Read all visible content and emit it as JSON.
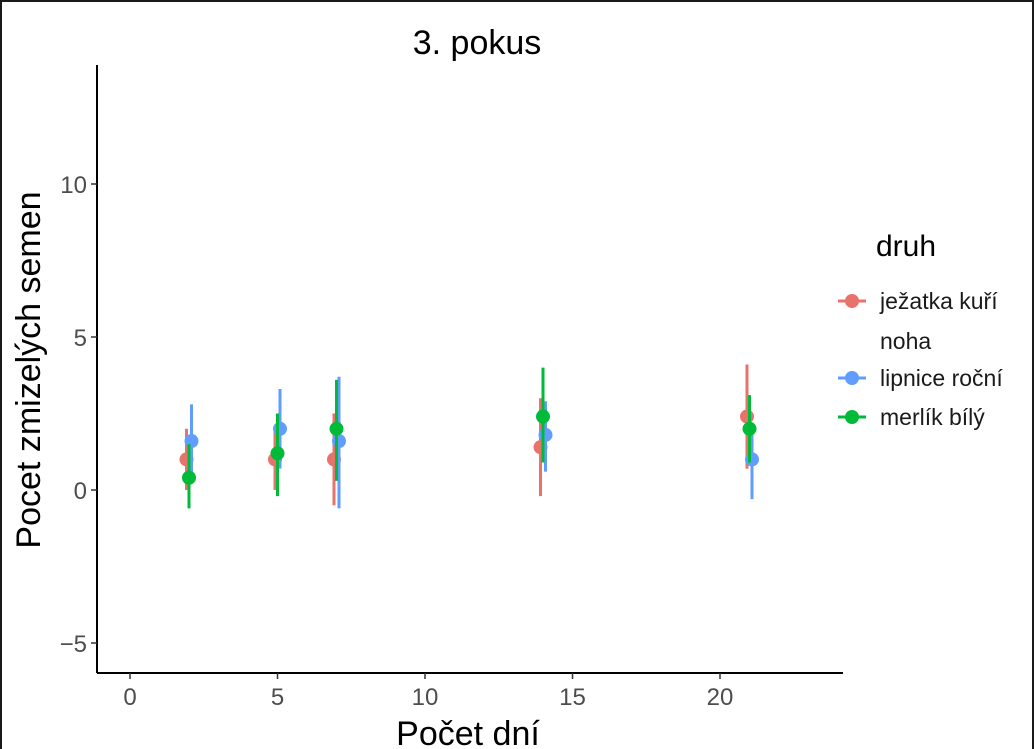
{
  "chart_data": {
    "type": "scatter",
    "title": "3. pokus",
    "xlabel": "Počet dní",
    "ylabel": "Pocet zmizelých semen",
    "xlim": [
      -1,
      24
    ],
    "ylim": [
      -6,
      14
    ],
    "xticks": [
      0,
      5,
      10,
      15,
      20
    ],
    "yticks": [
      -5,
      0,
      5,
      10
    ],
    "xtick_labels": [
      "0",
      "5",
      "10",
      "15",
      "20"
    ],
    "ytick_labels": [
      "−5",
      "0",
      "5",
      "10"
    ],
    "grid": false,
    "legend_position": "right",
    "legend_title": "druh",
    "series": [
      {
        "name": "ježatka kuří noha",
        "legend_lines": [
          "ježatka kuří",
          "noha"
        ],
        "color": "#E8736C",
        "points": [
          {
            "x": 2,
            "y": 1.0,
            "lo": 0.0,
            "hi": 2.0
          },
          {
            "x": 5,
            "y": 1.0,
            "lo": 0.0,
            "hi": 2.0
          },
          {
            "x": 7,
            "y": 1.0,
            "lo": -0.5,
            "hi": 2.5
          },
          {
            "x": 14,
            "y": 1.4,
            "lo": -0.2,
            "hi": 3.0
          },
          {
            "x": 21,
            "y": 2.4,
            "lo": 0.7,
            "hi": 4.1
          }
        ]
      },
      {
        "name": "lipnice roční",
        "legend_lines": [
          "lipnice roční"
        ],
        "color": "#619CFF",
        "points": [
          {
            "x": 2,
            "y": 1.6,
            "lo": 0.4,
            "hi": 2.8
          },
          {
            "x": 5,
            "y": 2.0,
            "lo": 0.7,
            "hi": 3.3
          },
          {
            "x": 7,
            "y": 1.6,
            "lo": -0.6,
            "hi": 3.7
          },
          {
            "x": 14,
            "y": 1.8,
            "lo": 0.6,
            "hi": 2.9
          },
          {
            "x": 21,
            "y": 1.0,
            "lo": -0.3,
            "hi": 2.2
          }
        ]
      },
      {
        "name": "merlík bílý",
        "legend_lines": [
          "merlík bílý"
        ],
        "color": "#00BA38",
        "points": [
          {
            "x": 2,
            "y": 0.4,
            "lo": -0.6,
            "hi": 1.5
          },
          {
            "x": 5,
            "y": 1.2,
            "lo": -0.2,
            "hi": 2.5
          },
          {
            "x": 7,
            "y": 2.0,
            "lo": 0.3,
            "hi": 3.6
          },
          {
            "x": 14,
            "y": 2.4,
            "lo": 0.9,
            "hi": 4.0
          },
          {
            "x": 21,
            "y": 2.0,
            "lo": 0.9,
            "hi": 3.1
          }
        ]
      }
    ]
  }
}
